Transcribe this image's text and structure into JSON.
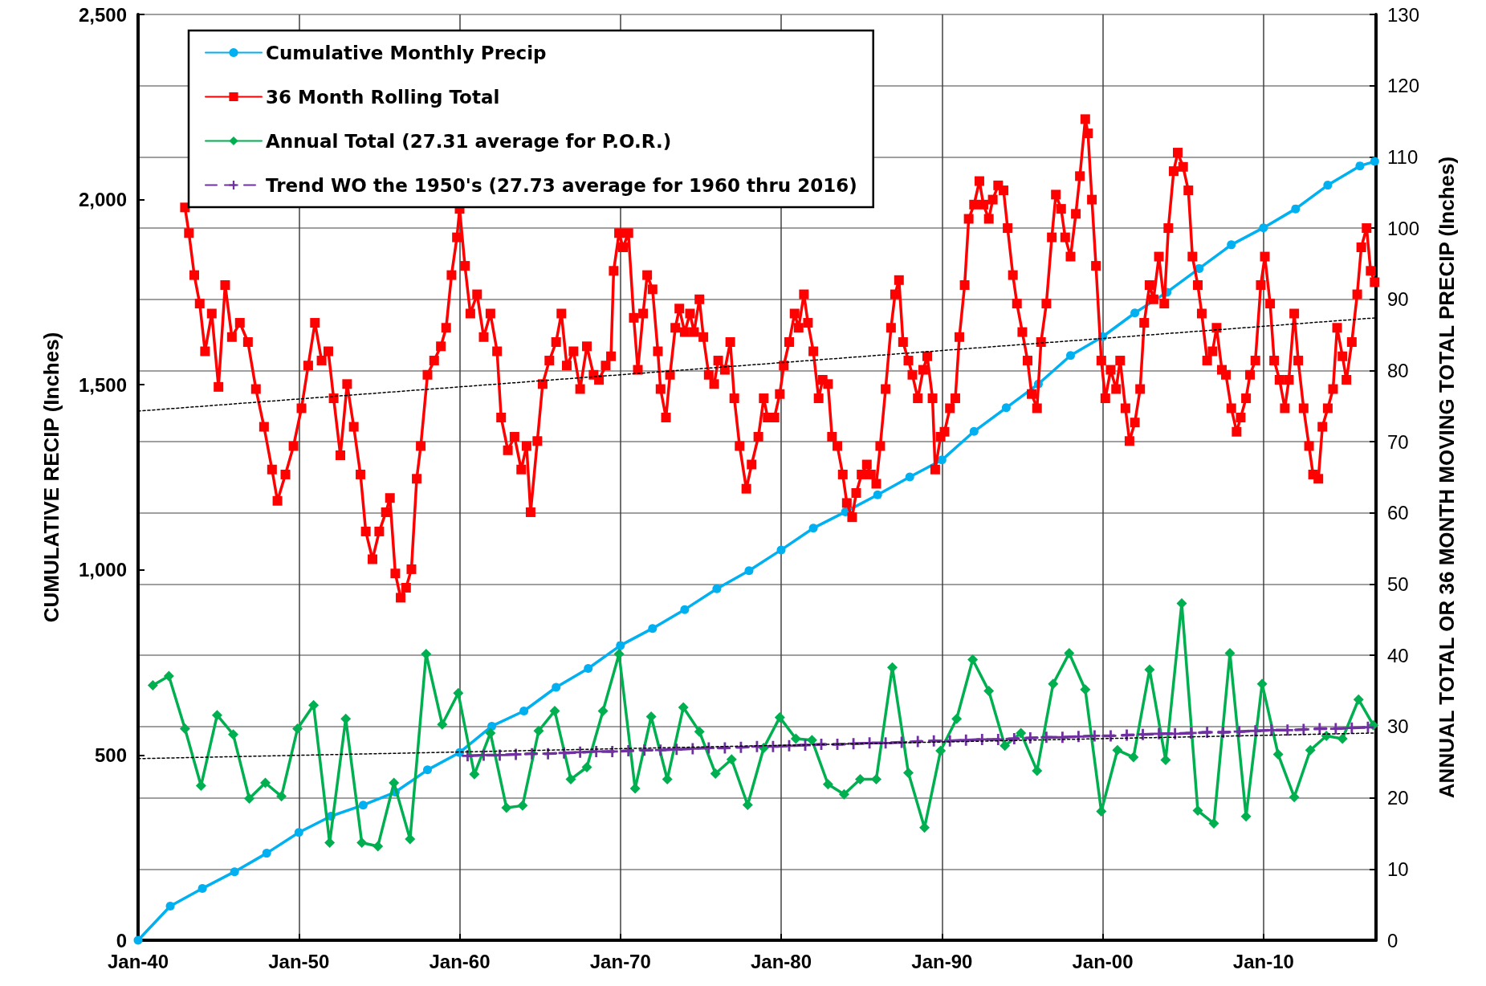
{
  "chart_data": {
    "type": "line",
    "ylabel": "CUMULATIVE RECIP (Inches)",
    "y2label": "ANNUAL TOTAL OR 36 MONTH MOVING TOTAL PRECIP (Inches)",
    "xlim": [
      "1940-01",
      "2017-01"
    ],
    "xticks": [
      {
        "value": "1940-01",
        "label": "Jan-40"
      },
      {
        "value": "1950-01",
        "label": "Jan-50"
      },
      {
        "value": "1960-01",
        "label": "Jan-60"
      },
      {
        "value": "1970-01",
        "label": "Jan-70"
      },
      {
        "value": "1980-01",
        "label": "Jan-80"
      },
      {
        "value": "1990-01",
        "label": "Jan-90"
      },
      {
        "value": "2000-01",
        "label": "Jan-00"
      },
      {
        "value": "2010-01",
        "label": "Jan-10"
      }
    ],
    "ylim": [
      0,
      2500
    ],
    "yticks": [
      0,
      500,
      {
        "value": 1000,
        "label": "1,000"
      },
      {
        "value": 1500,
        "label": "1,500"
      },
      {
        "value": 2000,
        "label": "2,000"
      },
      {
        "value": 2500,
        "label": "2,500"
      }
    ],
    "y2lim": [
      0,
      130
    ],
    "y2ticks": [
      0,
      10,
      20,
      30,
      40,
      50,
      60,
      70,
      80,
      90,
      100,
      110,
      120,
      130
    ],
    "grid": true,
    "legend": "top left",
    "series": [
      {
        "name": "Cumulative Monthly Precip",
        "color": "#00b0f0",
        "marker": "circle",
        "line_style": "solid",
        "x": [
          "1940-01",
          "1942-01",
          "1944-01",
          "1946-01",
          "1948-01",
          "1950-01",
          "1952-01",
          "1954-01",
          "1956-01",
          "1958-01",
          "1960-01",
          "1962-01",
          "1964-01",
          "1966-01",
          "1968-01",
          "1970-01",
          "1972-01",
          "1974-01",
          "1976-01",
          "1978-01",
          "1980-01",
          "1982-01",
          "1984-01",
          "1986-01",
          "1988-01",
          "1990-01",
          "1992-01",
          "1994-01",
          "1996-01",
          "1998-01",
          "2000-01",
          "2002-01",
          "2004-01",
          "2006-01",
          "2008-01",
          "2010-01",
          "2012-01",
          "2014-01",
          "2016-01",
          "2016-12"
        ],
        "values": [
          0,
          92,
          140,
          185,
          235,
          291,
          335,
          365,
          400,
          460,
          507,
          578,
          619,
          683,
          734,
          796,
          842,
          893,
          949,
          998,
          1054,
          1113,
          1157,
          1203,
          1251,
          1297,
          1374,
          1438,
          1502,
          1579,
          1630,
          1694,
          1750,
          1814,
          1878,
          1924,
          1975,
          2039,
          2091,
          2103
        ]
      },
      {
        "name": "36 Month Rolling Total",
        "color": "#ff0000",
        "marker": "square",
        "line_style": "solid",
        "axis": "y2",
        "x": [
          "1942-12",
          "1943-03",
          "1943-07",
          "1943-11",
          "1944-03",
          "1944-08",
          "1945-01",
          "1945-06",
          "1945-11",
          "1946-05",
          "1946-11",
          "1947-05",
          "1947-11",
          "1948-05",
          "1948-09",
          "1949-03",
          "1949-09",
          "1950-03",
          "1950-08",
          "1951-01",
          "1951-06",
          "1951-11",
          "1952-03",
          "1952-08",
          "1953-01",
          "1953-06",
          "1953-11",
          "1954-03",
          "1954-08",
          "1955-01",
          "1955-06",
          "1955-09",
          "1956-01",
          "1956-05",
          "1956-09",
          "1957-01",
          "1957-05",
          "1957-08",
          "1958-01",
          "1958-06",
          "1958-11",
          "1959-03",
          "1959-07",
          "1959-11",
          "1960-01",
          "1960-05",
          "1960-09",
          "1961-02",
          "1961-07",
          "1961-12",
          "1962-05",
          "1962-08",
          "1963-01",
          "1963-06",
          "1963-11",
          "1964-03",
          "1964-06",
          "1964-11",
          "1965-03",
          "1965-08",
          "1966-01",
          "1966-05",
          "1966-09",
          "1967-02",
          "1967-07",
          "1967-12",
          "1968-05",
          "1968-09",
          "1969-02",
          "1969-06",
          "1969-08",
          "1969-12",
          "1970-03",
          "1970-07",
          "1970-11",
          "1971-02",
          "1971-06",
          "1971-09",
          "1972-01",
          "1972-05",
          "1972-07",
          "1972-11",
          "1973-02",
          "1973-06",
          "1973-09",
          "1974-01",
          "1974-05",
          "1974-08",
          "1974-12",
          "1975-03",
          "1975-07",
          "1975-11",
          "1976-02",
          "1976-07",
          "1976-11",
          "1977-02",
          "1977-06",
          "1977-11",
          "1978-03",
          "1978-08",
          "1978-12",
          "1979-03",
          "1979-08",
          "1979-12",
          "1980-03",
          "1980-07",
          "1980-11",
          "1981-02",
          "1981-06",
          "1981-09",
          "1982-01",
          "1982-05",
          "1982-08",
          "1982-12",
          "1983-03",
          "1983-07",
          "1983-11",
          "1984-02",
          "1984-06",
          "1984-09",
          "1985-01",
          "1985-05",
          "1985-08",
          "1985-12",
          "1986-03",
          "1986-07",
          "1986-11",
          "1987-02",
          "1987-05",
          "1987-08",
          "1987-12",
          "1988-03",
          "1988-07",
          "1988-11",
          "1989-02",
          "1989-06",
          "1989-08",
          "1989-12",
          "1990-03",
          "1990-07",
          "1990-11",
          "1991-02",
          "1991-06",
          "1991-09",
          "1992-01",
          "1992-05",
          "1992-08",
          "1992-12",
          "1993-03",
          "1993-07",
          "1993-11",
          "1994-02",
          "1994-06",
          "1994-09",
          "1995-01",
          "1995-05",
          "1995-08",
          "1995-12",
          "1996-03",
          "1996-07",
          "1996-11",
          "1997-02",
          "1997-06",
          "1997-09",
          "1998-01",
          "1998-05",
          "1998-08",
          "1998-12",
          "1999-02",
          "1999-05",
          "1999-08",
          "1999-12",
          "2000-03",
          "2000-07",
          "2000-11",
          "2001-02",
          "2001-06",
          "2001-09",
          "2002-01",
          "2002-05",
          "2002-08",
          "2002-12",
          "2003-03",
          "2003-07",
          "2003-11",
          "2004-02",
          "2004-06",
          "2004-09",
          "2005-01",
          "2005-05",
          "2005-08",
          "2005-12",
          "2006-03",
          "2006-07",
          "2006-11",
          "2007-02",
          "2007-06",
          "2007-09",
          "2008-01",
          "2008-05",
          "2008-08",
          "2008-12",
          "2009-03",
          "2009-07",
          "2009-11",
          "2010-02",
          "2010-06",
          "2010-09",
          "2011-01",
          "2011-05",
          "2011-08",
          "2011-12",
          "2012-03",
          "2012-07",
          "2012-11",
          "2013-02",
          "2013-06",
          "2013-09",
          "2014-01",
          "2014-05",
          "2014-08",
          "2014-12",
          "2015-03",
          "2015-07",
          "2015-11",
          "2016-02",
          "2016-06",
          "2016-09",
          "2016-12"
        ],
        "values": [
          102.9,
          99.3,
          93.4,
          89.4,
          82.7,
          88.0,
          77.7,
          92.0,
          84.7,
          86.7,
          84.0,
          77.4,
          72.1,
          66.1,
          61.7,
          65.4,
          69.4,
          74.7,
          80.7,
          86.7,
          81.4,
          82.7,
          76.1,
          68.1,
          78.1,
          72.1,
          65.4,
          57.4,
          53.5,
          57.4,
          60.1,
          62.1,
          51.5,
          48.1,
          49.5,
          52.1,
          64.8,
          69.4,
          79.4,
          81.4,
          83.4,
          86.0,
          93.4,
          98.7,
          102.7,
          94.7,
          88.0,
          90.7,
          84.7,
          88.0,
          82.7,
          73.4,
          68.8,
          70.7,
          66.1,
          69.4,
          60.1,
          70.1,
          78.1,
          81.4,
          84.0,
          88.0,
          80.7,
          82.7,
          77.4,
          83.4,
          79.4,
          78.7,
          80.7,
          82.0,
          94.0,
          99.3,
          97.3,
          99.3,
          87.4,
          80.1,
          88.0,
          93.4,
          91.4,
          82.7,
          77.4,
          73.4,
          79.4,
          86.0,
          88.7,
          85.4,
          88.0,
          85.4,
          90.0,
          84.7,
          79.4,
          78.1,
          81.4,
          80.1,
          84.0,
          76.1,
          69.4,
          63.4,
          66.8,
          70.7,
          76.1,
          73.4,
          73.4,
          76.7,
          80.7,
          84.0,
          88.0,
          86.0,
          90.7,
          86.7,
          82.7,
          76.1,
          78.7,
          78.1,
          70.7,
          69.4,
          65.4,
          61.4,
          59.4,
          62.8,
          65.4,
          66.8,
          65.4,
          64.1,
          69.4,
          77.4,
          86.0,
          90.7,
          92.7,
          84.0,
          81.4,
          79.4,
          76.1,
          80.1,
          82.0,
          76.1,
          66.1,
          70.7,
          71.4,
          74.7,
          76.1,
          84.7,
          92.0,
          101.3,
          103.3,
          106.6,
          103.3,
          101.3,
          104.0,
          106.0,
          105.3,
          100.0,
          93.4,
          89.4,
          85.4,
          81.4,
          76.7,
          74.7,
          84.0,
          89.4,
          98.7,
          104.7,
          102.7,
          98.7,
          96.0,
          102.0,
          107.3,
          115.3,
          113.3,
          104.0,
          94.7,
          81.4,
          76.1,
          80.1,
          77.4,
          81.4,
          74.7,
          70.1,
          72.7,
          77.4,
          86.7,
          92.0,
          90.0,
          96.0,
          89.4,
          100.0,
          108.0,
          110.6,
          108.6,
          105.3,
          96.0,
          92.0,
          88.0,
          81.4,
          82.7,
          86.0,
          80.1,
          79.4,
          74.7,
          71.4,
          73.4,
          76.1,
          79.4,
          81.4,
          92.0,
          96.0,
          89.4,
          81.4,
          78.7,
          74.7,
          78.7,
          88.0,
          81.4,
          74.7,
          69.4,
          65.4,
          64.8,
          72.1,
          74.7,
          77.4,
          86.0,
          82.0,
          78.7,
          84.0,
          90.7,
          97.3,
          100.0,
          94.0,
          92.4
        ]
      },
      {
        "name": "Annual Total (27.31 average for P.O.R.)",
        "color": "#00b050",
        "marker": "diamond",
        "line_style": "solid",
        "axis": "y2",
        "x": [
          "1940-12",
          "1941-12",
          "1942-12",
          "1943-12",
          "1944-12",
          "1945-12",
          "1946-12",
          "1947-12",
          "1948-12",
          "1949-12",
          "1950-12",
          "1951-12",
          "1952-12",
          "1953-12",
          "1954-12",
          "1955-12",
          "1956-12",
          "1957-12",
          "1958-12",
          "1959-12",
          "1960-12",
          "1961-12",
          "1962-12",
          "1963-12",
          "1964-12",
          "1965-12",
          "1966-12",
          "1967-12",
          "1968-12",
          "1969-12",
          "1970-12",
          "1971-12",
          "1972-12",
          "1973-12",
          "1974-12",
          "1975-12",
          "1976-12",
          "1977-12",
          "1978-12",
          "1979-12",
          "1980-12",
          "1981-12",
          "1982-12",
          "1983-12",
          "1984-12",
          "1985-12",
          "1986-12",
          "1987-12",
          "1988-12",
          "1989-12",
          "1990-12",
          "1991-12",
          "1992-12",
          "1993-12",
          "1994-12",
          "1995-12",
          "1996-12",
          "1997-12",
          "1998-12",
          "1999-12",
          "2000-12",
          "2001-12",
          "2002-12",
          "2003-12",
          "2004-12",
          "2005-12",
          "2006-12",
          "2007-12",
          "2008-12",
          "2009-12",
          "2010-12",
          "2011-12",
          "2012-12",
          "2013-12",
          "2014-12",
          "2015-12",
          "2016-11"
        ],
        "values": [
          35.8,
          37.1,
          29.7,
          21.7,
          31.6,
          28.9,
          19.9,
          22.1,
          20.2,
          29.7,
          33.0,
          13.7,
          31.1,
          13.7,
          13.2,
          22.1,
          14.2,
          40.2,
          30.3,
          34.7,
          23.3,
          29.1,
          18.6,
          18.9,
          29.4,
          32.2,
          22.6,
          24.3,
          32.2,
          40.2,
          21.3,
          31.4,
          22.6,
          32.7,
          29.3,
          23.4,
          25.4,
          19.0,
          27.0,
          31.3,
          28.3,
          28.1,
          21.9,
          20.5,
          22.6,
          22.6,
          38.3,
          23.5,
          15.8,
          26.6,
          31.1,
          39.4,
          35.0,
          27.3,
          29.1,
          23.8,
          36.0,
          40.3,
          35.2,
          18.1,
          26.7,
          25.7,
          38.0,
          25.3,
          47.3,
          18.2,
          16.4,
          40.3,
          17.4,
          36.0,
          26.1,
          20.1,
          26.7,
          28.7,
          28.3,
          33.8,
          30.2
        ]
      },
      {
        "name": "Trend WO the 1950's (27.73 average for 1960 thru 2016)",
        "color": "#7030a0",
        "marker": "cross",
        "line_style": "dashed",
        "axis": "y2",
        "x": [
          "1960-07",
          "1961-07",
          "1962-07",
          "1963-07",
          "1964-07",
          "1965-07",
          "1966-07",
          "1967-07",
          "1968-07",
          "1969-07",
          "1970-07",
          "1971-07",
          "1972-07",
          "1973-07",
          "1974-07",
          "1975-07",
          "1976-07",
          "1977-07",
          "1978-07",
          "1979-07",
          "1980-07",
          "1981-07",
          "1982-07",
          "1983-07",
          "1984-07",
          "1985-07",
          "1986-07",
          "1987-07",
          "1988-07",
          "1989-07",
          "1990-07",
          "1991-07",
          "1992-07",
          "1993-07",
          "1994-07",
          "1995-07",
          "1996-07",
          "1997-07",
          "1998-07",
          "1999-07",
          "2000-07",
          "2001-07",
          "2002-07",
          "2003-07",
          "2004-07",
          "2005-07",
          "2006-07",
          "2007-07",
          "2008-07",
          "2009-07",
          "2010-07",
          "2011-07",
          "2012-07",
          "2013-07",
          "2014-07",
          "2015-07",
          "2016-07"
        ],
        "values": [
          25.9,
          26.0,
          26.0,
          26.1,
          26.2,
          26.2,
          26.3,
          26.4,
          26.5,
          26.5,
          26.6,
          26.7,
          26.7,
          26.8,
          26.9,
          27.0,
          27.0,
          27.1,
          27.2,
          27.2,
          27.3,
          27.4,
          27.5,
          27.5,
          27.6,
          27.7,
          27.7,
          27.8,
          27.9,
          28.0,
          28.0,
          28.1,
          28.2,
          28.2,
          28.3,
          28.4,
          28.5,
          28.5,
          28.6,
          28.7,
          28.7,
          28.8,
          28.9,
          29.0,
          29.0,
          29.1,
          29.2,
          29.2,
          29.3,
          29.4,
          29.5,
          29.5,
          29.6,
          29.7,
          29.7,
          29.8,
          29.9
        ]
      },
      {
        "color": "#000000",
        "marker": "none",
        "line_style": "dotted",
        "axis": "y2",
        "x": [
          "1940-01",
          "2017-01"
        ],
        "values": [
          74.3,
          87.4
        ]
      },
      {
        "color": "#000000",
        "marker": "none",
        "line_style": "dotted",
        "axis": "y2",
        "x": [
          "1940-01",
          "2017-01"
        ],
        "values": [
          25.5,
          29.1
        ]
      }
    ]
  }
}
